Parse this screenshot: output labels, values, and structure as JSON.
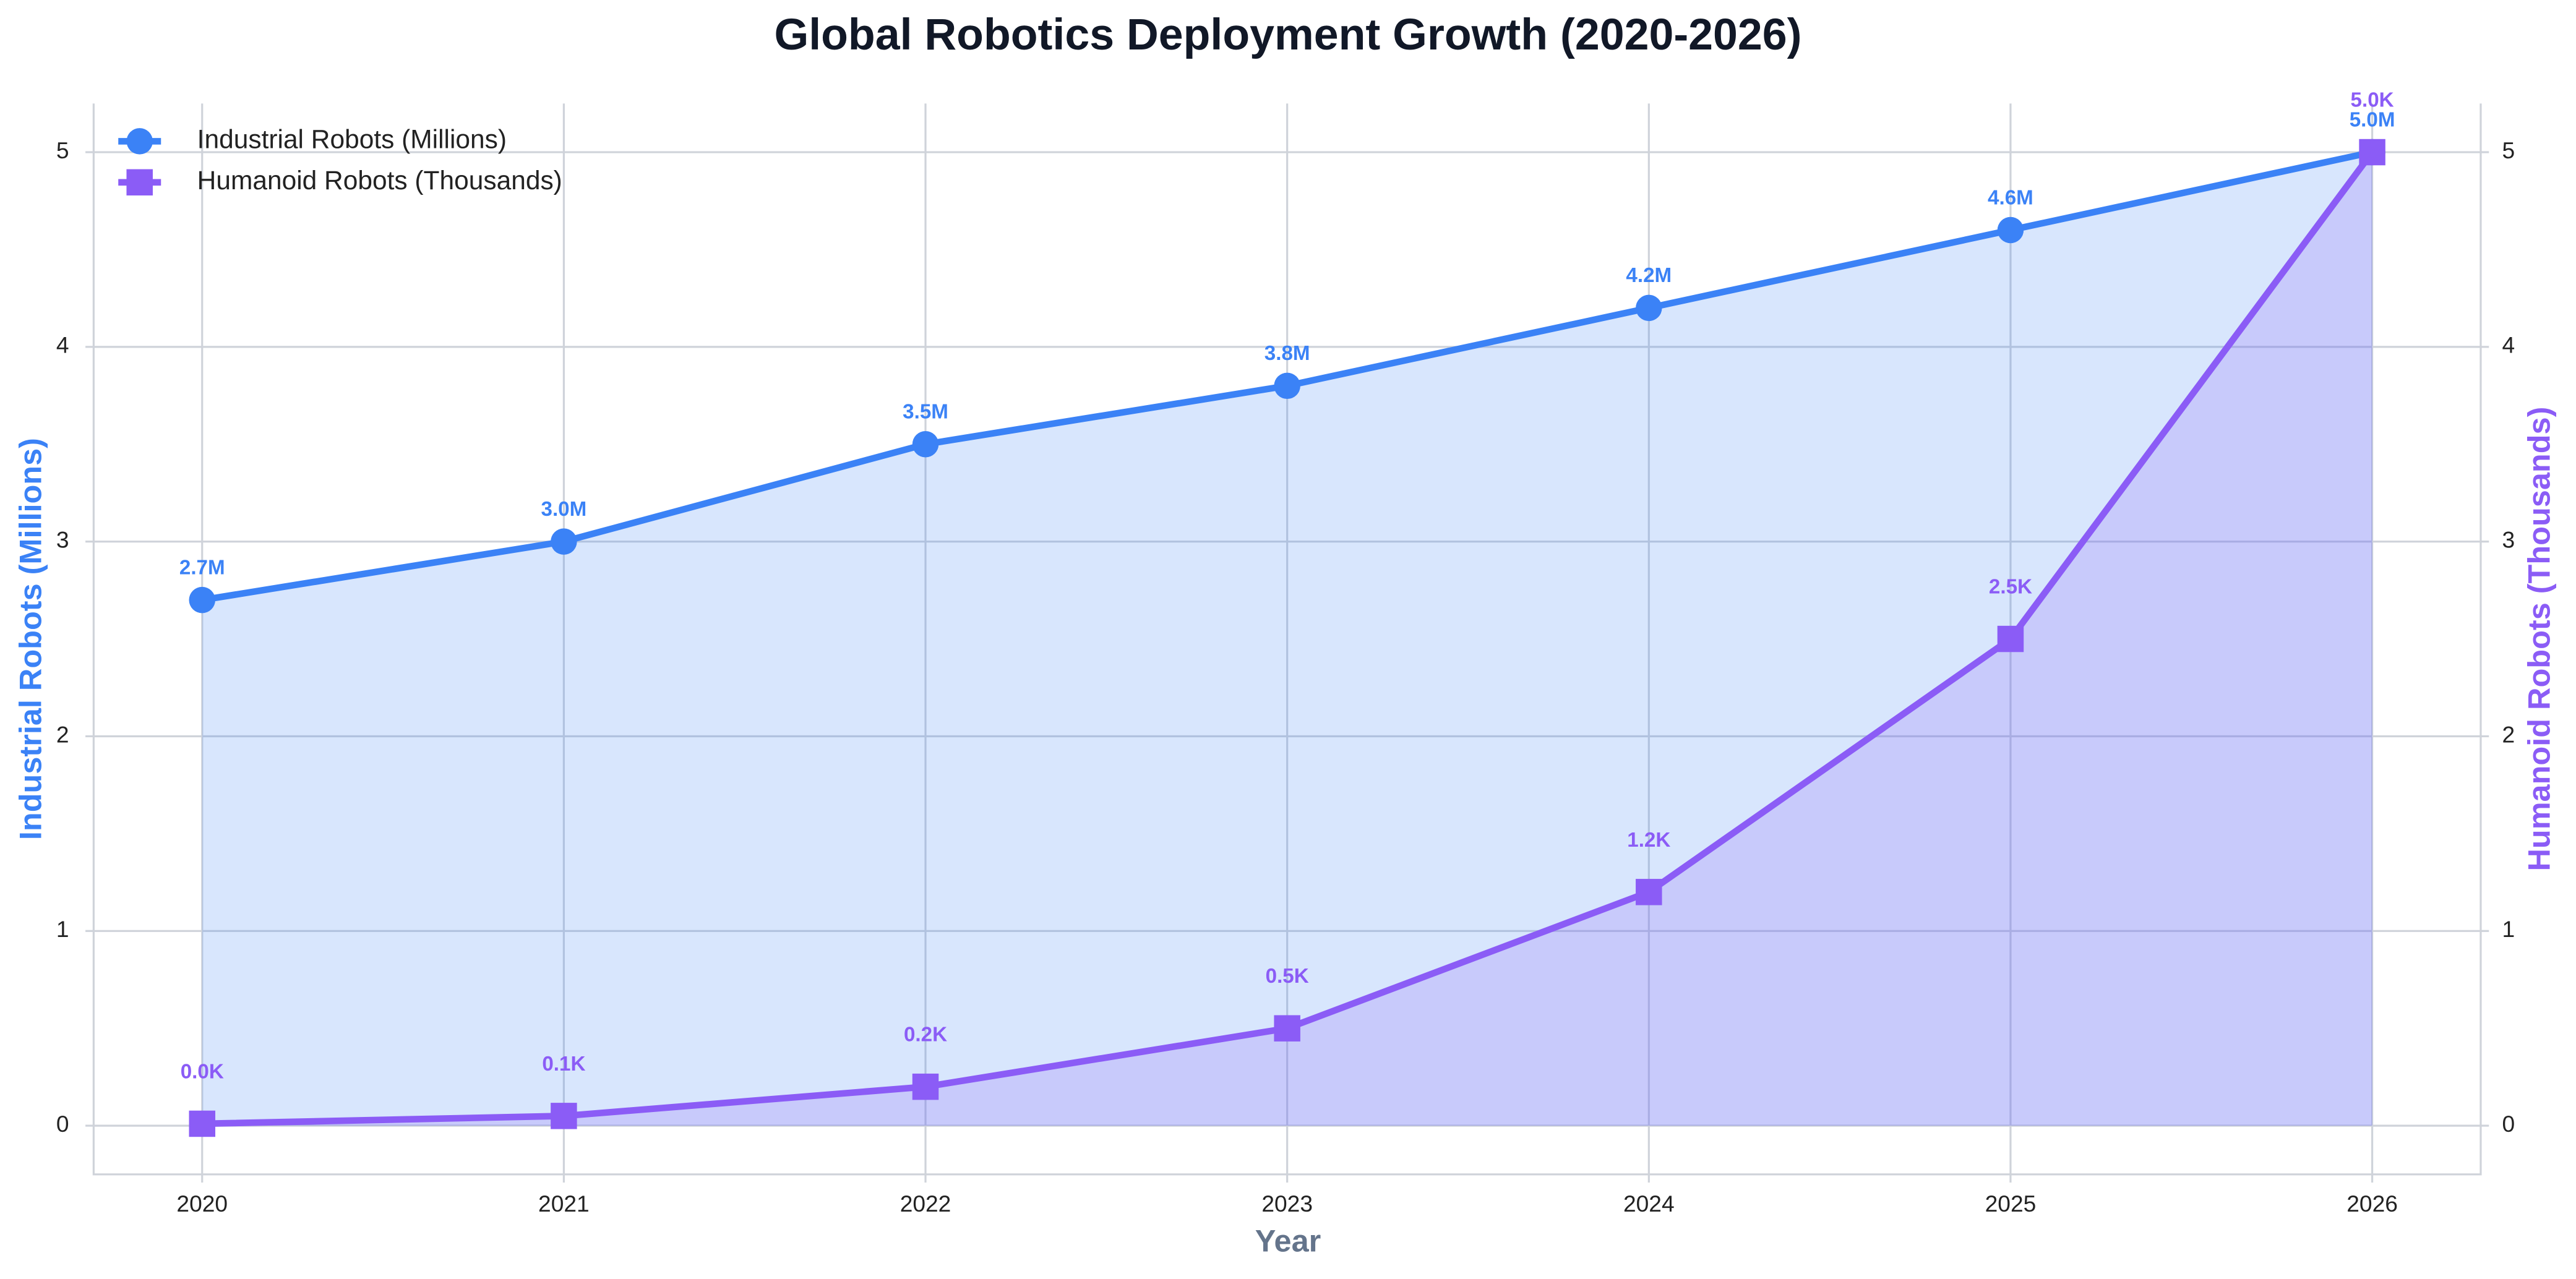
{
  "chart_data": {
    "type": "line",
    "title": "Global Robotics Deployment Growth (2020-2026)",
    "x_label": "Year",
    "y_label": "Industrial Robots (Millions)",
    "y2_label": "Humanoid Robots (Thousands)",
    "x": [
      2020,
      2021,
      2022,
      2023,
      2024,
      2025,
      2026
    ],
    "xlim": [
      2019.7,
      2026.3
    ],
    "xticks": [
      2020,
      2021,
      2022,
      2023,
      2024,
      2025,
      2026
    ],
    "ylim": [
      -0.25,
      5.25
    ],
    "yticks": [
      0,
      1,
      2,
      3,
      4,
      5
    ],
    "y2lim": [
      -0.25,
      5.25
    ],
    "y2ticks": [
      0,
      1,
      2,
      3,
      4,
      5
    ],
    "grid": true,
    "legend": "upper left",
    "series": [
      {
        "name": "Industrial Robots (Millions)",
        "color": "#3b82f6",
        "marker": "circle",
        "fill": true,
        "values": [
          2.7,
          3.0,
          3.5,
          3.8,
          4.2,
          4.6,
          5.0
        ],
        "value_labels": [
          "2.7M",
          "3.0M",
          "3.5M",
          "3.8M",
          "4.2M",
          "4.6M",
          "5.0M"
        ]
      },
      {
        "name": "Humanoid Robots (Thousands)",
        "color": "#8b5cf6",
        "marker": "square",
        "fill": true,
        "axis": "y2",
        "values": [
          0.01,
          0.05,
          0.2,
          0.5,
          1.2,
          2.5,
          5.0
        ],
        "value_labels": [
          "0.0K",
          "0.1K",
          "0.2K",
          "0.5K",
          "1.2K",
          "2.5K",
          "5.0K"
        ]
      }
    ]
  }
}
